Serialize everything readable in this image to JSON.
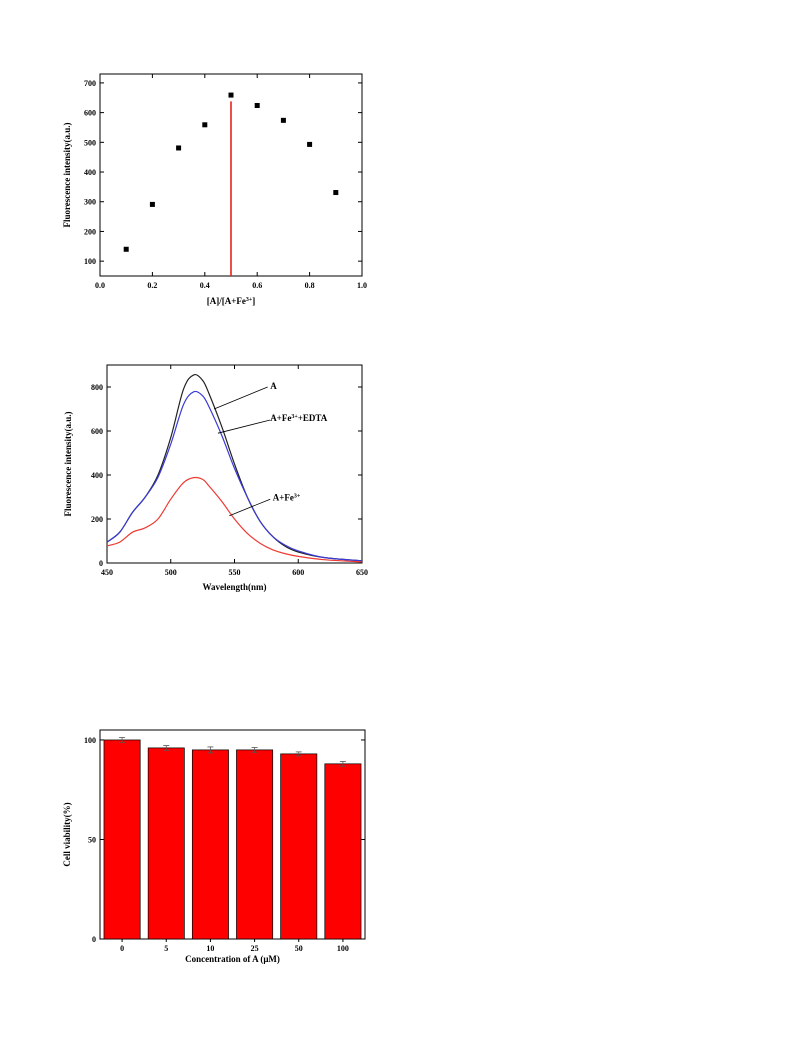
{
  "chart_data": [
    {
      "type": "scatter",
      "xlabel": "[A]/[A+Fe",
      "xlabel_sup": "3+",
      "xlabel_end": "]",
      "ylabel": "Fluorescence intensity(a.u.)",
      "xlim": [
        0.0,
        1.0
      ],
      "ylim": [
        50,
        730
      ],
      "xticks": [
        0.0,
        0.2,
        0.4,
        0.6,
        0.8,
        1.0
      ],
      "xtick_labels": [
        "0.0",
        "0.2",
        "0.4",
        "0.6",
        "0.8",
        "1.0"
      ],
      "yticks": [
        100,
        200,
        300,
        400,
        500,
        600,
        700
      ],
      "ytick_labels": [
        "100",
        "200",
        "300",
        "400",
        "500",
        "600",
        "700"
      ],
      "points": [
        {
          "x": 0.1,
          "y": 140
        },
        {
          "x": 0.2,
          "y": 291
        },
        {
          "x": 0.3,
          "y": 481
        },
        {
          "x": 0.4,
          "y": 559
        },
        {
          "x": 0.5,
          "y": 659
        },
        {
          "x": 0.6,
          "y": 624
        },
        {
          "x": 0.7,
          "y": 574
        },
        {
          "x": 0.8,
          "y": 493
        },
        {
          "x": 0.9,
          "y": 331
        }
      ],
      "reference_line": {
        "x": 0.5,
        "y": 638,
        "color": "#e8211c"
      },
      "marker_color": "#000000",
      "grid": false
    },
    {
      "type": "line",
      "xlabel": "Wavelength(nm)",
      "ylabel": "Fluorescence intensity(a.u.)",
      "xlim": [
        450,
        650
      ],
      "ylim": [
        0,
        900
      ],
      "xticks": [
        450,
        500,
        550,
        600,
        650
      ],
      "xtick_labels": [
        "450",
        "500",
        "550",
        "600",
        "650"
      ],
      "yticks": [
        0,
        200,
        400,
        600,
        800
      ],
      "ytick_labels": [
        "0",
        "200",
        "400",
        "600",
        "800"
      ],
      "x": [
        450,
        460,
        470,
        480,
        490,
        500,
        510,
        518,
        525,
        530,
        540,
        550,
        560,
        570,
        580,
        590,
        600,
        620,
        650
      ],
      "series": [
        {
          "label": "A",
          "color": "#222222",
          "values": [
            95,
            140,
            230,
            300,
            400,
            570,
            790,
            855,
            830,
            770,
            620,
            450,
            300,
            190,
            120,
            75,
            50,
            25,
            10
          ]
        },
        {
          "label": "A+Fe",
          "label_sup": "3+",
          "label_end": "+EDTA",
          "color": "#3a3ad6",
          "values": [
            95,
            140,
            230,
            300,
            390,
            540,
            720,
            778,
            760,
            710,
            580,
            430,
            300,
            190,
            120,
            80,
            55,
            25,
            10
          ]
        },
        {
          "label": "A+Fe",
          "label_sup": "3+",
          "label_end": "",
          "color": "#ee3a33",
          "values": [
            78,
            95,
            140,
            160,
            200,
            290,
            365,
            388,
            380,
            350,
            280,
            200,
            135,
            90,
            60,
            42,
            30,
            15,
            5
          ]
        }
      ],
      "grid": false
    },
    {
      "type": "bar",
      "xlabel": "Concentration of A (μM)",
      "ylabel": "Cell viability(%)",
      "ylim": [
        0,
        105
      ],
      "yticks": [
        0,
        50,
        100
      ],
      "ytick_labels": [
        "0",
        "50",
        "100"
      ],
      "categories": [
        "0",
        "5",
        "10",
        "25",
        "50",
        "100"
      ],
      "values": [
        100,
        96,
        95,
        95,
        93,
        88
      ],
      "errors": [
        1.2,
        1.2,
        1.5,
        1.2,
        1.0,
        1.2
      ],
      "bar_color": "#ff0000",
      "grid": false
    }
  ]
}
